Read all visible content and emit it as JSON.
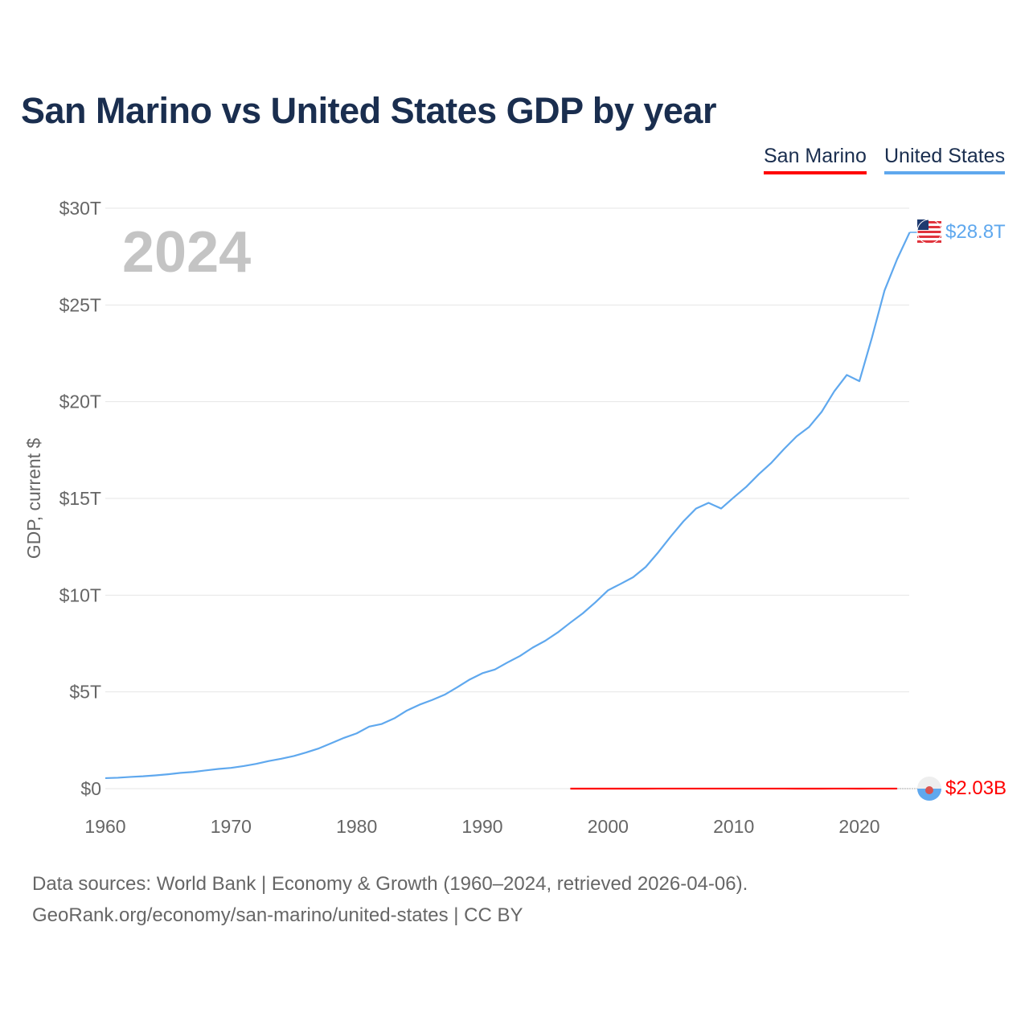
{
  "chart_data": {
    "type": "line",
    "title": "San Marino vs United States GDP by year",
    "ylabel": "GDP, current $",
    "xlabel": "",
    "year_watermark": "2024",
    "xlim": [
      1960,
      2024
    ],
    "ylim": [
      0,
      30
    ],
    "x_ticks": [
      1960,
      1970,
      1980,
      1990,
      2000,
      2010,
      2020
    ],
    "x_tick_labels": [
      "1960",
      "1970",
      "1980",
      "1990",
      "2000",
      "2010",
      "2020"
    ],
    "y_ticks": [
      0,
      5,
      10,
      15,
      20,
      25,
      30
    ],
    "y_tick_labels": [
      "$0",
      "$5T",
      "$10T",
      "$15T",
      "$20T",
      "$25T",
      "$30T"
    ],
    "grid": true,
    "legend_placement": "top-right",
    "series": [
      {
        "name": "San Marino",
        "color": "#ff0000",
        "end_label": "$2.03B",
        "unit": "trillion USD",
        "x": [
          1997,
          1998,
          1999,
          2000,
          2001,
          2002,
          2003,
          2004,
          2005,
          2006,
          2007,
          2008,
          2009,
          2010,
          2011,
          2012,
          2013,
          2014,
          2015,
          2016,
          2017,
          2018,
          2019,
          2020,
          2021,
          2022,
          2023
        ],
        "values": [
          0.00096,
          0.00103,
          0.00109,
          0.00105,
          0.00114,
          0.00126,
          0.00155,
          0.00176,
          0.00182,
          0.00201,
          0.00239,
          0.00268,
          0.00246,
          0.00214,
          0.00205,
          0.00178,
          0.00176,
          0.00171,
          0.00148,
          0.00148,
          0.00155,
          0.00164,
          0.00162,
          0.00155,
          0.00179,
          0.00182,
          0.00203
        ]
      },
      {
        "name": "United States",
        "color": "#5fa8ee",
        "end_label": "$28.8T",
        "unit": "trillion USD",
        "x": [
          1960,
          1961,
          1962,
          1963,
          1964,
          1965,
          1966,
          1967,
          1968,
          1969,
          1970,
          1971,
          1972,
          1973,
          1974,
          1975,
          1976,
          1977,
          1978,
          1979,
          1980,
          1981,
          1982,
          1983,
          1984,
          1985,
          1986,
          1987,
          1988,
          1989,
          1990,
          1991,
          1992,
          1993,
          1994,
          1995,
          1996,
          1997,
          1998,
          1999,
          2000,
          2001,
          2002,
          2003,
          2004,
          2005,
          2006,
          2007,
          2008,
          2009,
          2010,
          2011,
          2012,
          2013,
          2014,
          2015,
          2016,
          2017,
          2018,
          2019,
          2020,
          2021,
          2022,
          2023,
          2024
        ],
        "values": [
          0.543,
          0.563,
          0.605,
          0.638,
          0.686,
          0.744,
          0.815,
          0.862,
          0.943,
          1.019,
          1.073,
          1.165,
          1.28,
          1.425,
          1.545,
          1.684,
          1.873,
          2.082,
          2.352,
          2.627,
          2.857,
          3.207,
          3.343,
          3.634,
          4.037,
          4.339,
          4.58,
          4.855,
          5.236,
          5.642,
          5.963,
          6.158,
          6.52,
          6.859,
          7.287,
          7.64,
          8.073,
          8.578,
          9.063,
          9.631,
          10.251,
          10.582,
          10.929,
          11.457,
          12.217,
          13.039,
          13.816,
          14.474,
          14.77,
          14.478,
          15.049,
          15.6,
          16.254,
          16.843,
          17.551,
          18.206,
          18.695,
          19.477,
          20.533,
          21.381,
          21.06,
          23.315,
          25.744,
          27.361,
          28.751
        ]
      }
    ]
  },
  "footer": {
    "line1": "Data sources: World Bank | Economy & Growth (1960–2024, retrieved 2026-04-06).",
    "line2": "GeoRank.org/economy/san-marino/united-states | CC BY"
  }
}
